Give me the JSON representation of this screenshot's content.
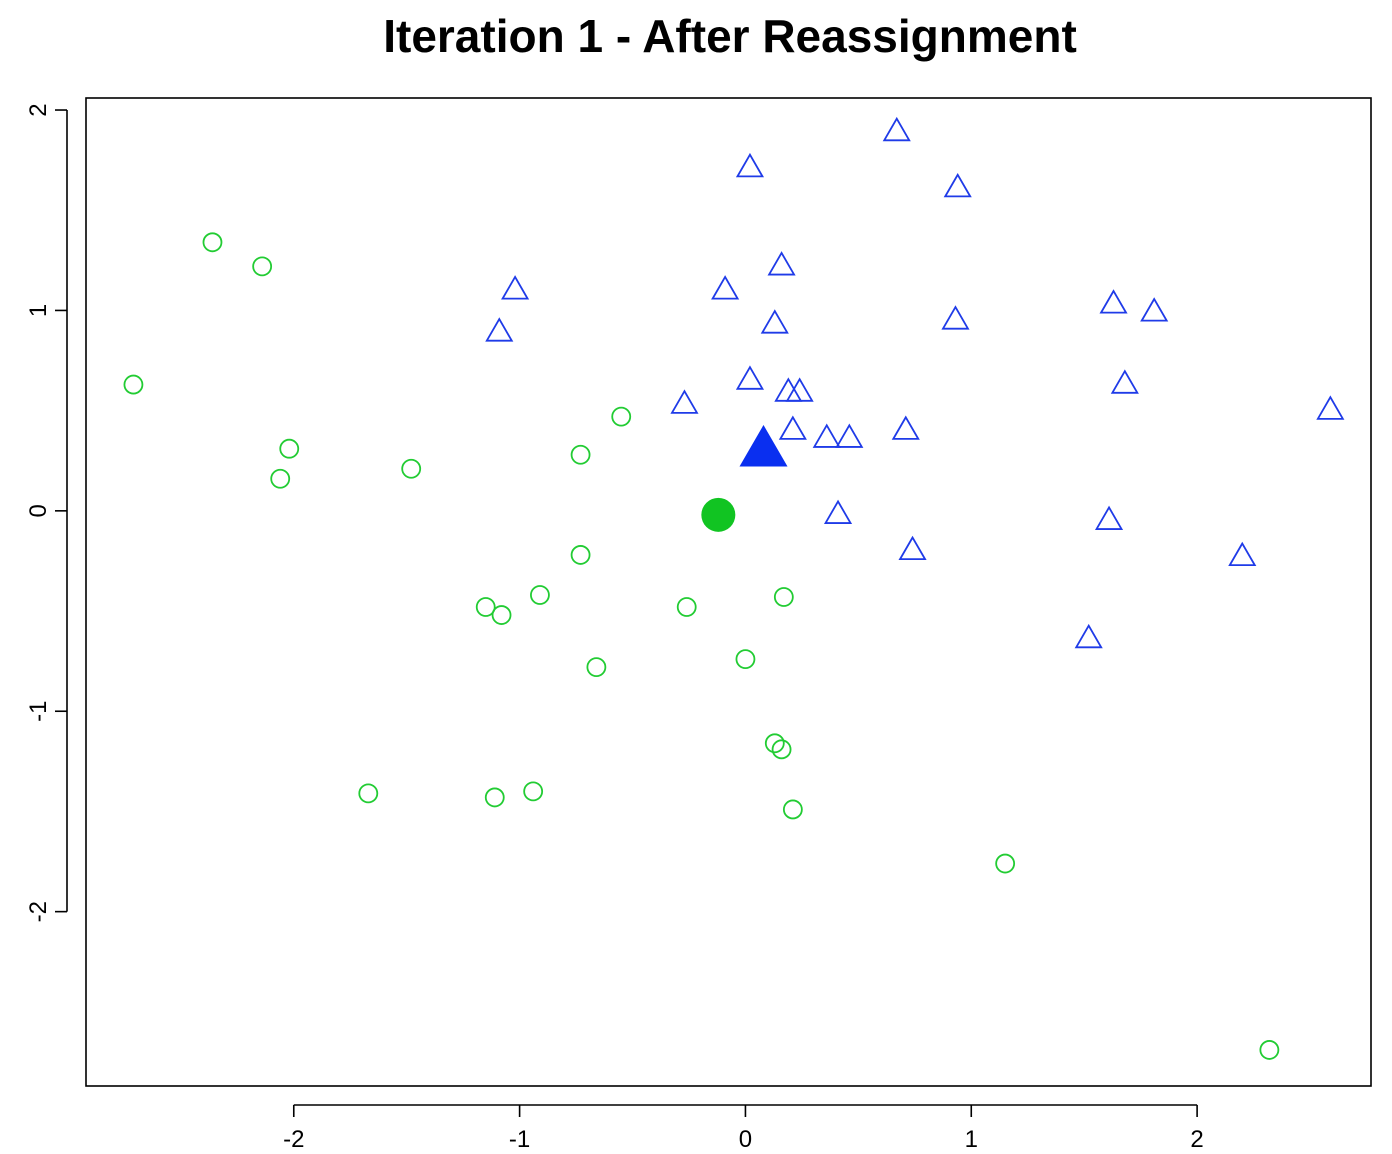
{
  "chart_data": {
    "type": "scatter",
    "title": "Iteration 1 - After Reassignment",
    "xlabel": "",
    "ylabel": "",
    "xlim": [
      -2.92,
      2.77
    ],
    "ylim": [
      -2.87,
      2.06
    ],
    "x_ticks": [
      -2,
      -1,
      0,
      1,
      2
    ],
    "y_ticks": [
      -2,
      -1,
      0,
      1,
      2
    ],
    "x_tick_labels": [
      "-2",
      "-1",
      "0",
      "1",
      "2"
    ],
    "y_tick_labels": [
      "-2",
      "-1",
      "0",
      "1",
      "2"
    ],
    "grid": false,
    "series": [
      {
        "marker": "open-circle",
        "color": "#22cc33",
        "points": [
          [
            -2.36,
            1.34
          ],
          [
            -2.14,
            1.22
          ],
          [
            -2.71,
            0.63
          ],
          [
            -2.02,
            0.31
          ],
          [
            -2.06,
            0.16
          ],
          [
            -1.48,
            0.21
          ],
          [
            -0.73,
            0.28
          ],
          [
            -0.55,
            0.47
          ],
          [
            -0.73,
            -0.22
          ],
          [
            -0.91,
            -0.42
          ],
          [
            -1.15,
            -0.48
          ],
          [
            -1.08,
            -0.52
          ],
          [
            -0.26,
            -0.48
          ],
          [
            0.17,
            -0.43
          ],
          [
            -0.66,
            -0.78
          ],
          [
            0.0,
            -0.74
          ],
          [
            0.13,
            -1.16
          ],
          [
            0.16,
            -1.19
          ],
          [
            0.21,
            -1.49
          ],
          [
            -0.94,
            -1.4
          ],
          [
            -1.11,
            -1.43
          ],
          [
            -1.67,
            -1.41
          ],
          [
            1.15,
            -1.76
          ],
          [
            2.32,
            -2.69
          ]
        ]
      },
      {
        "marker": "open-triangle",
        "color": "#1f3be8",
        "points": [
          [
            0.67,
            1.89
          ],
          [
            0.02,
            1.71
          ],
          [
            0.94,
            1.61
          ],
          [
            0.16,
            1.22
          ],
          [
            -0.09,
            1.1
          ],
          [
            -1.02,
            1.1
          ],
          [
            -1.09,
            0.89
          ],
          [
            0.13,
            0.93
          ],
          [
            0.93,
            0.95
          ],
          [
            1.63,
            1.03
          ],
          [
            1.81,
            0.99
          ],
          [
            0.02,
            0.65
          ],
          [
            1.68,
            0.63
          ],
          [
            0.19,
            0.59
          ],
          [
            0.24,
            0.59
          ],
          [
            -0.27,
            0.53
          ],
          [
            0.21,
            0.4
          ],
          [
            0.36,
            0.36
          ],
          [
            0.46,
            0.36
          ],
          [
            0.71,
            0.4
          ],
          [
            2.59,
            0.5
          ],
          [
            0.41,
            -0.02
          ],
          [
            1.61,
            -0.05
          ],
          [
            0.74,
            -0.2
          ],
          [
            2.2,
            -0.23
          ],
          [
            1.52,
            -0.64
          ]
        ]
      }
    ],
    "centroids": [
      {
        "marker": "filled-circle",
        "color": "#11c422",
        "x": -0.12,
        "y": -0.02
      },
      {
        "marker": "filled-triangle",
        "color": "#0a2ff0",
        "x": 0.08,
        "y": 0.3
      }
    ]
  }
}
